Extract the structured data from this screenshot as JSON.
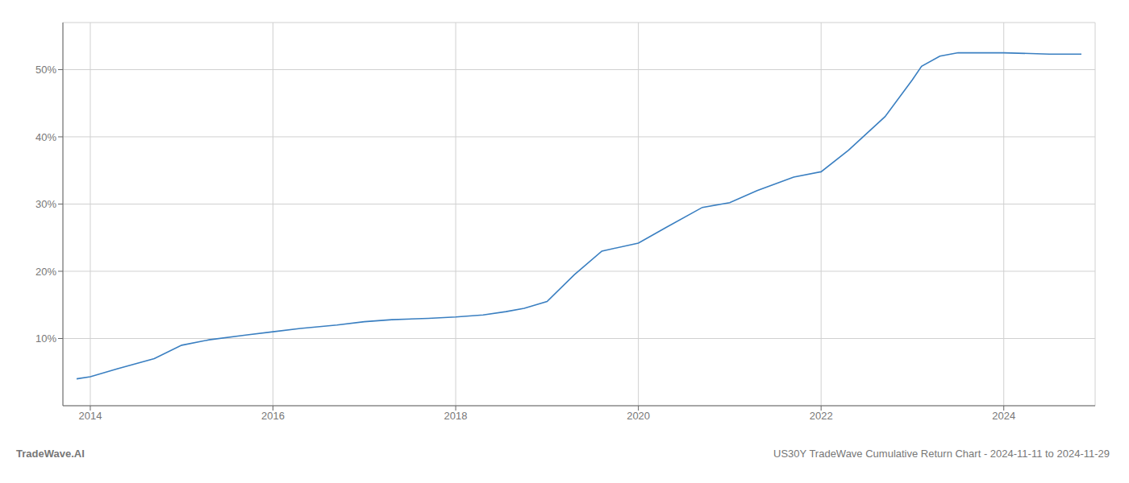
{
  "chart_data": {
    "type": "line",
    "x": [
      2013.85,
      2014.0,
      2014.3,
      2014.7,
      2015.0,
      2015.3,
      2015.7,
      2016.0,
      2016.3,
      2016.7,
      2017.0,
      2017.3,
      2017.7,
      2018.0,
      2018.3,
      2018.55,
      2018.75,
      2019.0,
      2019.3,
      2019.6,
      2020.0,
      2020.3,
      2020.7,
      2021.0,
      2021.3,
      2021.7,
      2022.0,
      2022.3,
      2022.7,
      2023.0,
      2023.1,
      2023.3,
      2023.5,
      2023.7,
      2023.85,
      2024.0,
      2024.5,
      2024.85
    ],
    "values": [
      4.0,
      4.3,
      5.5,
      7.0,
      9.0,
      9.8,
      10.5,
      11.0,
      11.5,
      12.0,
      12.5,
      12.8,
      13.0,
      13.2,
      13.5,
      14.0,
      14.5,
      15.5,
      19.5,
      23.0,
      24.2,
      26.5,
      29.5,
      30.2,
      32.0,
      34.0,
      34.8,
      38.0,
      43.0,
      48.5,
      50.5,
      52.0,
      52.5,
      52.5,
      52.5,
      52.5,
      52.3,
      52.3
    ],
    "color": "#3a7fc1",
    "xlim": [
      2013.7,
      2025.0
    ],
    "ylim": [
      0,
      57
    ],
    "xticks": [
      2014,
      2016,
      2018,
      2020,
      2022,
      2024
    ],
    "yticks": [
      {
        "value": 10,
        "label": "10%"
      },
      {
        "value": 20,
        "label": "20%"
      },
      {
        "value": 30,
        "label": "30%"
      },
      {
        "value": 40,
        "label": "40%"
      },
      {
        "value": 50,
        "label": "50%"
      }
    ],
    "grid": true,
    "annotations": [
      "TradeWave.AI",
      "US30Y TradeWave Cumulative Return Chart - 2024-11-11 to 2024-11-29"
    ]
  }
}
